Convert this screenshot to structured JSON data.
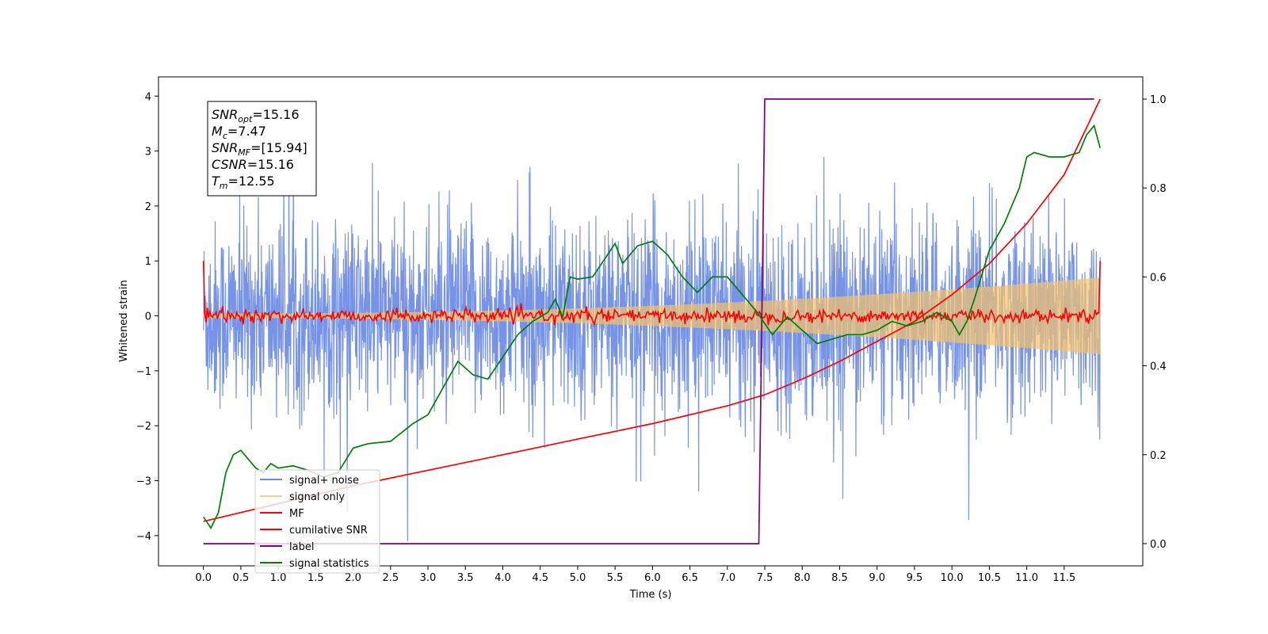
{
  "chart_data": {
    "type": "line",
    "xlabel": "Time (s)",
    "ylabel": "Whitened strain",
    "xlim": [
      -0.6,
      12.55
    ],
    "ylim_left": [
      -4.55,
      4.35
    ],
    "ylim_right": [
      -0.05,
      1.05
    ],
    "x_ticks": [
      "0.0",
      "0.5",
      "1.0",
      "1.5",
      "2.0",
      "2.5",
      "3.0",
      "3.5",
      "4.0",
      "4.5",
      "5.0",
      "5.5",
      "6.0",
      "6.5",
      "7.0",
      "7.5",
      "8.0",
      "8.5",
      "9.0",
      "9.5",
      "10.0",
      "10.5",
      "11.0",
      "11.5"
    ],
    "y_ticks_left": [
      "−4",
      "−3",
      "−2",
      "−1",
      "0",
      "1",
      "2",
      "3",
      "4"
    ],
    "y_ticks_right": [
      "0.0",
      "0.2",
      "0.4",
      "0.6",
      "0.8",
      "1.0"
    ],
    "annotation": [
      {
        "name": "SNR",
        "sub": "opt",
        "value": "=15.16"
      },
      {
        "name": "M",
        "sub": "c",
        "value": "=7.47"
      },
      {
        "name": "SNR",
        "sub": "MF",
        "value": "=[15.94]"
      },
      {
        "name": "CSNR",
        "sub": "",
        "value": "=15.16"
      },
      {
        "name": "T",
        "sub": "m",
        "value": "=12.55"
      }
    ],
    "legend_position": "lower-left",
    "series": [
      {
        "name": "signal+ noise",
        "color": "#6a8ae6",
        "axis": "left",
        "kind": "noise",
        "x_range": [
          0,
          11.98
        ],
        "typical_amplitude": 1.6,
        "peak": [
          -4.1,
          3.95
        ]
      },
      {
        "name": "signal only",
        "color": "#f5c26b",
        "axis": "left",
        "kind": "chirp",
        "x_range": [
          0,
          11.98
        ],
        "amplitude_start": 0.04,
        "amplitude_end": 0.7
      },
      {
        "name": "MF",
        "color": "#ff0000",
        "axis": "left",
        "kind": "flat_noise",
        "x_range": [
          0,
          11.98
        ],
        "start_value": 1.0,
        "end_value": 1.0,
        "typical_amplitude": 0.06
      },
      {
        "name": "cumilative SNR",
        "color": "#ff0000",
        "axis": "right",
        "x": [
          0,
          0.5,
          1,
          2,
          3,
          4,
          5,
          6,
          7,
          7.5,
          8,
          8.5,
          9,
          9.5,
          10,
          10.5,
          11,
          11.5,
          11.98
        ],
        "y": [
          0.05,
          0.07,
          0.09,
          0.13,
          0.165,
          0.2,
          0.235,
          0.27,
          0.31,
          0.335,
          0.37,
          0.41,
          0.455,
          0.5,
          0.56,
          0.63,
          0.72,
          0.83,
          1.0
        ]
      },
      {
        "name": "label",
        "color": "#800080",
        "axis": "right",
        "x": [
          0,
          7.42,
          7.5,
          11.9
        ],
        "y": [
          0,
          0,
          1,
          1
        ]
      },
      {
        "name": "signal statistics",
        "color": "#008000",
        "axis": "right",
        "x": [
          0,
          0.1,
          0.2,
          0.3,
          0.4,
          0.5,
          0.6,
          0.7,
          0.8,
          0.9,
          1.0,
          1.2,
          1.4,
          1.6,
          1.8,
          2.0,
          2.2,
          2.5,
          2.8,
          3.0,
          3.2,
          3.4,
          3.6,
          3.8,
          4.0,
          4.2,
          4.4,
          4.5,
          4.6,
          4.7,
          4.8,
          4.9,
          5.0,
          5.2,
          5.4,
          5.5,
          5.6,
          5.8,
          6.0,
          6.2,
          6.4,
          6.6,
          6.8,
          7.0,
          7.2,
          7.4,
          7.6,
          7.8,
          8.0,
          8.2,
          8.4,
          8.6,
          8.8,
          9.0,
          9.2,
          9.4,
          9.6,
          9.8,
          10.0,
          10.1,
          10.2,
          10.3,
          10.5,
          10.7,
          10.9,
          11.0,
          11.1,
          11.3,
          11.5,
          11.7,
          11.8,
          11.9,
          11.98
        ],
        "y": [
          0.06,
          0.035,
          0.07,
          0.16,
          0.2,
          0.21,
          0.19,
          0.17,
          0.16,
          0.18,
          0.17,
          0.175,
          0.165,
          0.15,
          0.16,
          0.215,
          0.225,
          0.23,
          0.27,
          0.29,
          0.35,
          0.41,
          0.38,
          0.37,
          0.42,
          0.47,
          0.5,
          0.51,
          0.52,
          0.55,
          0.51,
          0.6,
          0.595,
          0.6,
          0.65,
          0.675,
          0.63,
          0.67,
          0.68,
          0.65,
          0.6,
          0.565,
          0.6,
          0.6,
          0.56,
          0.52,
          0.47,
          0.51,
          0.48,
          0.45,
          0.46,
          0.47,
          0.47,
          0.48,
          0.5,
          0.49,
          0.5,
          0.52,
          0.5,
          0.47,
          0.5,
          0.55,
          0.66,
          0.72,
          0.8,
          0.87,
          0.88,
          0.87,
          0.87,
          0.88,
          0.92,
          0.94,
          0.89
        ]
      }
    ]
  }
}
